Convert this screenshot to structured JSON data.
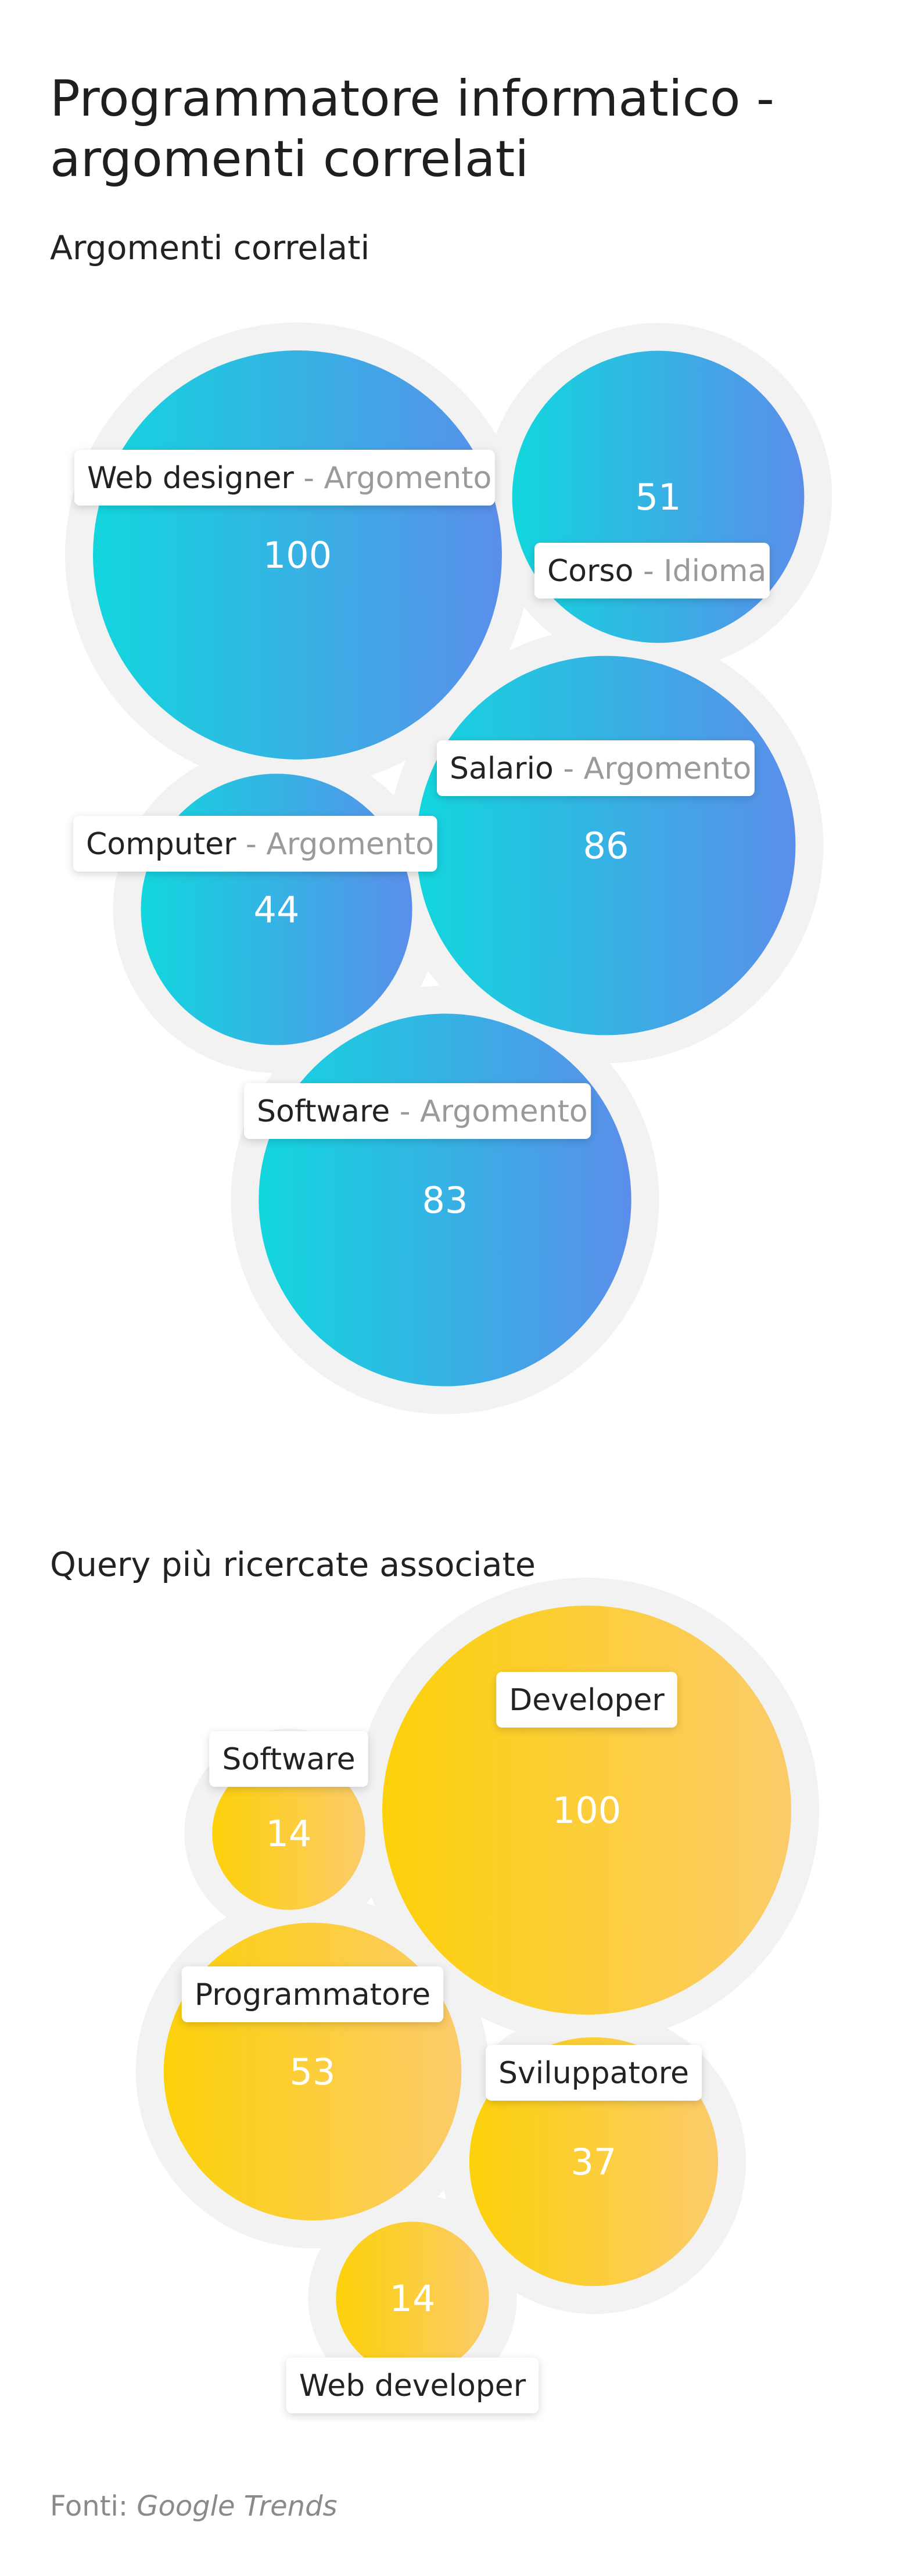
{
  "title": "Programmatore informatico - argomenti correlati",
  "sections": {
    "related": {
      "title": "Argomenti correlati"
    },
    "queries": {
      "title": "Query più ricercate associate"
    }
  },
  "source": {
    "label": "Fonti:",
    "name": "Google Trends"
  },
  "colors": {
    "related_gradient": [
      "#12d6de",
      "#5a8eea"
    ],
    "queries_gradient": [
      "#fdd10a",
      "#fbcb6a"
    ],
    "halo": "#f2f2f2",
    "label_bg": "#ffffff",
    "label_text": "#222222",
    "label_type": "#9a9a9a",
    "value_text": "#ffffff"
  },
  "chart_data": [
    {
      "type": "bubble",
      "title": "Argomenti correlati",
      "series": [
        {
          "label": "Web designer",
          "category": "Argomento",
          "value": 100
        },
        {
          "label": "Corso",
          "category": "Idioma",
          "value": 51
        },
        {
          "label": "Salario",
          "category": "Argomento",
          "value": 86
        },
        {
          "label": "Computer",
          "category": "Argomento",
          "value": 44
        },
        {
          "label": "Software",
          "category": "Argomento",
          "value": 83
        }
      ]
    },
    {
      "type": "bubble",
      "title": "Query più ricercate associate",
      "series": [
        {
          "label": "Developer",
          "value": 100
        },
        {
          "label": "Software",
          "value": 14
        },
        {
          "label": "Programmatore",
          "value": 53
        },
        {
          "label": "Sviluppatore",
          "value": 37
        },
        {
          "label": "Web developer",
          "value": 14
        }
      ]
    }
  ]
}
